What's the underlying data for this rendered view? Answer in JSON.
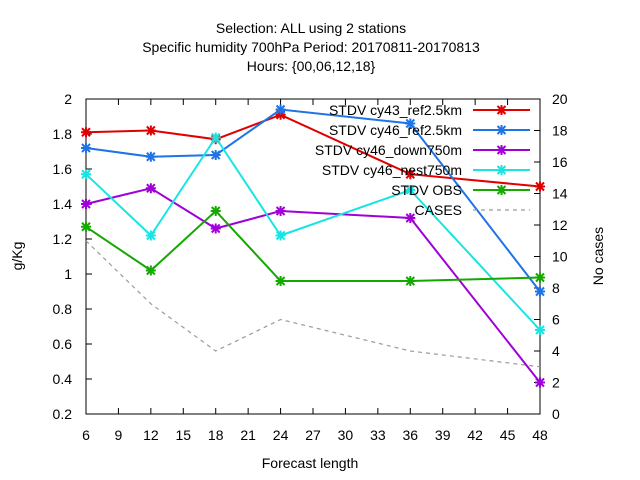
{
  "chart_data": {
    "type": "line",
    "title_lines": [
      "Selection: ALL using     2 stations",
      "Specific humidity 700hPa   Period: 20170811-20170813",
      "Hours: {00,06,12,18}"
    ],
    "xlabel": "Forecast length",
    "ylabel": "g/Kg",
    "y2label": "No cases",
    "xlim": [
      6,
      48
    ],
    "ylim": [
      0.2,
      2
    ],
    "y2lim": [
      0,
      20
    ],
    "x_ticks": [
      6,
      9,
      12,
      15,
      18,
      21,
      24,
      27,
      30,
      33,
      36,
      39,
      42,
      45,
      48
    ],
    "y_ticks": [
      0.2,
      0.4,
      0.6,
      0.8,
      1,
      1.2,
      1.4,
      1.6,
      1.8,
      2
    ],
    "y2_ticks": [
      0,
      2,
      4,
      6,
      8,
      10,
      12,
      14,
      16,
      18,
      20
    ],
    "x_tick_labels": [
      "6",
      "9",
      "12",
      "15",
      "18",
      "21",
      "24",
      "27",
      "30",
      "33",
      "36",
      "39",
      "42",
      "45",
      "48"
    ],
    "y_tick_labels": [
      "0.2",
      "0.4",
      "0.6",
      "0.8",
      "1",
      "1.2",
      "1.4",
      "1.6",
      "1.8",
      "2"
    ],
    "y2_tick_labels": [
      "0",
      "2",
      "4",
      "6",
      "8",
      "10",
      "12",
      "14",
      "16",
      "18",
      "20"
    ],
    "grid": false,
    "legend_position": "top-right",
    "series": [
      {
        "name": "STDV cy43_ref2.5km",
        "color": "#e00000",
        "axis": "y",
        "dashed": false,
        "marker": true,
        "x": [
          6,
          12,
          18,
          24,
          36,
          48
        ],
        "values": [
          1.81,
          1.82,
          1.77,
          1.91,
          1.57,
          1.5
        ]
      },
      {
        "name": "STDV cy46_ref2.5km",
        "color": "#1e74e6",
        "axis": "y",
        "dashed": false,
        "marker": true,
        "x": [
          6,
          12,
          18,
          24,
          36,
          48
        ],
        "values": [
          1.72,
          1.67,
          1.68,
          1.94,
          1.86,
          0.9
        ]
      },
      {
        "name": "STDV cy46_down750m",
        "color": "#a000d8",
        "axis": "y",
        "dashed": false,
        "marker": true,
        "x": [
          6,
          12,
          18,
          24,
          36,
          48
        ],
        "values": [
          1.4,
          1.49,
          1.26,
          1.36,
          1.32,
          0.38
        ]
      },
      {
        "name": "STDV cy46_nest750m",
        "color": "#18e4e4",
        "axis": "y",
        "dashed": false,
        "marker": true,
        "x": [
          6,
          12,
          18,
          24,
          36,
          48
        ],
        "values": [
          1.57,
          1.22,
          1.78,
          1.22,
          1.48,
          0.68
        ]
      },
      {
        "name": "STDV OBS",
        "color": "#14a800",
        "axis": "y",
        "dashed": false,
        "marker": true,
        "x": [
          6,
          12,
          18,
          24,
          36,
          48
        ],
        "values": [
          1.27,
          1.02,
          1.36,
          0.96,
          0.96,
          0.98
        ]
      },
      {
        "name": "CASES",
        "color": "#9a9a9a",
        "axis": "y2",
        "dashed": true,
        "marker": false,
        "x": [
          6,
          12,
          18,
          24,
          36,
          48
        ],
        "values": [
          11,
          7,
          4,
          6,
          4,
          3
        ]
      }
    ]
  }
}
